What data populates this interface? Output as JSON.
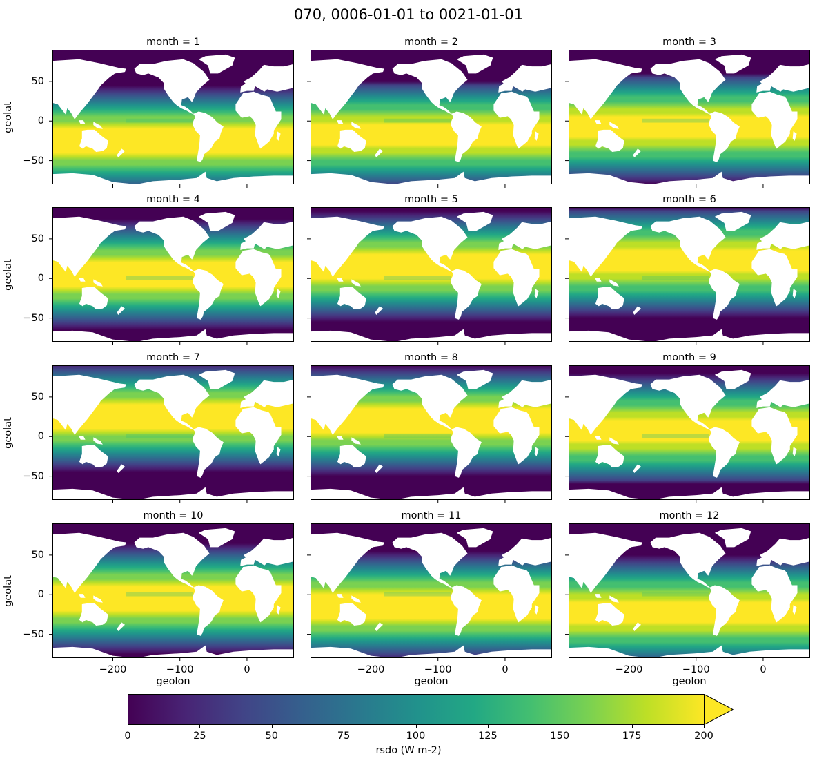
{
  "figure": {
    "title": "070, 0006-01-01 to 0021-01-01"
  },
  "chart_data": {
    "type": "heatmap",
    "variable": "rsdo",
    "panel_titles": [
      "month = 1",
      "month = 2",
      "month = 3",
      "month = 4",
      "month = 5",
      "month = 6",
      "month = 7",
      "month = 8",
      "month = 9",
      "month = 10",
      "month = 11",
      "month = 12"
    ],
    "months": [
      1,
      2,
      3,
      4,
      5,
      6,
      7,
      8,
      9,
      10,
      11,
      12
    ],
    "xlabel": "geolon",
    "ylabel": "geolat",
    "xlim": [
      -290,
      70
    ],
    "ylim": [
      -80,
      90
    ],
    "xticks": [
      -200,
      -100,
      0
    ],
    "xtick_labels": [
      "−200",
      "−100",
      "0"
    ],
    "yticks": [
      50,
      0,
      -50
    ],
    "ytick_labels": [
      "50",
      "0",
      "−50"
    ],
    "colorbar": {
      "label": "rsdo (W m-2)",
      "min": 0,
      "max": 200,
      "extend": "max",
      "ticks": [
        0,
        25,
        50,
        75,
        100,
        125,
        150,
        175,
        200
      ],
      "tick_labels": [
        "0",
        "25",
        "50",
        "75",
        "100",
        "125",
        "150",
        "175",
        "200"
      ],
      "colormap": "viridis",
      "colors": [
        "#440154",
        "#482475",
        "#414487",
        "#355f8d",
        "#2a788e",
        "#21918c",
        "#22a884",
        "#44bf70",
        "#7ad151",
        "#bddf26",
        "#fde725"
      ]
    },
    "land_color": "#ffffff",
    "max_flux_latitude_by_month": [
      -25,
      -18,
      -8,
      5,
      15,
      22,
      25,
      20,
      8,
      -5,
      -15,
      -22
    ]
  }
}
